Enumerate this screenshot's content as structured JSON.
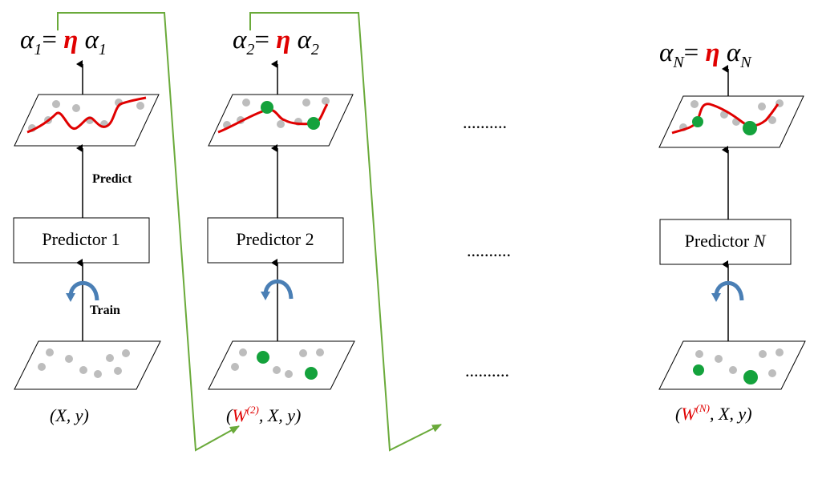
{
  "colors": {
    "eta": "#e00000",
    "predict": "#e00000",
    "train": "#3a86c8",
    "arrow_curve": "#4a7fb5",
    "weight_symbol": "#e00000",
    "green_dot": "#14a23c",
    "gray_dot": "#bdbdbd",
    "fit_curve": "#e00000",
    "flow_line": "#6aaa3a"
  },
  "labels": {
    "predict": "Predict",
    "train": "Train",
    "ellipsis": ".........."
  },
  "columns": [
    {
      "alpha_sym": "α",
      "alpha_sub": "1",
      "equals": "=",
      "eta": "η",
      "alpha_sym_r": "α",
      "alpha_sub_r": "1",
      "predictor_label": "Predictor",
      "predictor_num": "1",
      "data_open": "(",
      "data_weight": "",
      "data_weight_sup": "",
      "data_tail": "X, y)"
    },
    {
      "alpha_sym": "α",
      "alpha_sub": "2",
      "equals": "=",
      "eta": "η",
      "alpha_sym_r": "α",
      "alpha_sub_r": "2",
      "predictor_label": "Predictor",
      "predictor_num": "2",
      "data_open": "(",
      "data_weight": "W",
      "data_weight_sup": "(2)",
      "data_tail": ",  X, y)"
    },
    {
      "alpha_sym": "α",
      "alpha_sub": "N",
      "equals": "=",
      "eta": "η",
      "alpha_sym_r": "α",
      "alpha_sub_r": "N",
      "predictor_label": "Predictor",
      "predictor_num": "N",
      "data_open": "(",
      "data_weight": "W",
      "data_weight_sup": "(N)",
      "data_tail": ",  X, y)"
    }
  ]
}
